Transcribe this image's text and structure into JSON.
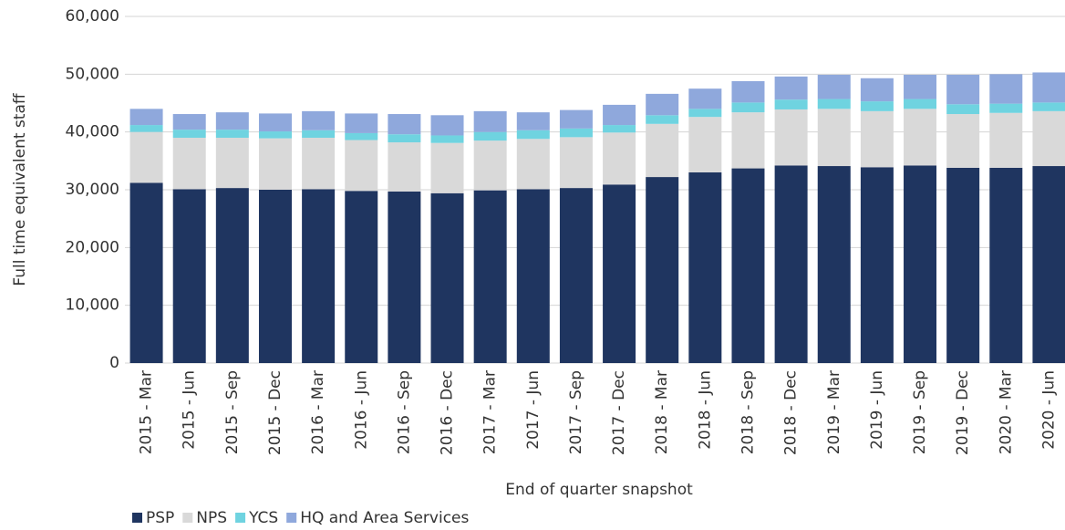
{
  "chart_data": {
    "type": "stacked_bar",
    "categories": [
      "2015 - Mar",
      "2015 - Jun",
      "2015 - Sep",
      "2015 - Dec",
      "2016 - Mar",
      "2016 - Jun",
      "2016 - Sep",
      "2016 - Dec",
      "2017 - Mar",
      "2017 - Jun",
      "2017 - Sep",
      "2017 - Dec",
      "2018 - Mar",
      "2018 - Jun",
      "2018 - Sep",
      "2018 - Dec",
      "2019 - Mar",
      "2019 - Jun",
      "2019 - Sep",
      "2019 - Dec",
      "2020 - Mar",
      "2020 - Jun"
    ],
    "series": [
      {
        "name": "PSP",
        "color": "#1f3560",
        "values": [
          31200,
          30100,
          30300,
          30000,
          30100,
          29800,
          29700,
          29400,
          29900,
          30100,
          30300,
          30900,
          32200,
          33000,
          33700,
          34200,
          34100,
          33900,
          34200,
          33800,
          33800,
          34100
        ]
      },
      {
        "name": "NPS",
        "color": "#d9d9d9",
        "values": [
          8800,
          8900,
          8700,
          8900,
          8900,
          8800,
          8500,
          8700,
          8600,
          8700,
          8800,
          9000,
          9200,
          9600,
          9700,
          9700,
          9900,
          9700,
          9800,
          9300,
          9500,
          9500
        ]
      },
      {
        "name": "YCS",
        "color": "#6fd3e0",
        "values": [
          1200,
          1400,
          1400,
          1200,
          1300,
          1200,
          1400,
          1300,
          1500,
          1500,
          1500,
          1300,
          1500,
          1400,
          1700,
          1700,
          1700,
          1700,
          1700,
          1700,
          1600,
          1500
        ]
      },
      {
        "name": "HQ and Area Services",
        "color": "#8fa8dc",
        "values": [
          2800,
          2700,
          3000,
          3100,
          3300,
          3400,
          3500,
          3500,
          3600,
          3100,
          3200,
          3500,
          3700,
          3500,
          3700,
          4000,
          4200,
          4000,
          4200,
          5100,
          5100,
          5200
        ]
      }
    ],
    "ylim": [
      0,
      60000
    ],
    "yticks": [
      0,
      {
        "value": 10000,
        "label": "10,000"
      },
      {
        "value": 20000,
        "label": "20,000"
      },
      {
        "value": 30000,
        "label": "30,000"
      },
      {
        "value": 40000,
        "label": "40,000"
      },
      {
        "value": 50000,
        "label": "50,000"
      },
      {
        "value": 60000,
        "label": "60,000"
      }
    ],
    "xlabel": "End of quarter snapshot",
    "ylabel": "Full time equivalent staff",
    "grid": true,
    "legend": "bottom-left"
  }
}
